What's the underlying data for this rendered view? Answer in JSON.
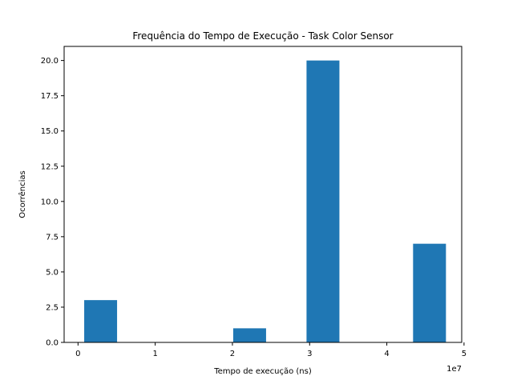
{
  "chart_data": {
    "type": "bar",
    "title": "Frequência do Tempo de Execução - Task Color Sensor",
    "xlabel": "Tempo de execução (ns)",
    "ylabel": "Ocorrências",
    "x_offset_label": "1e7",
    "xlim": [
      -1800000,
      49700000
    ],
    "ylim": [
      0,
      21
    ],
    "bin_width": 4260000,
    "bins": [
      {
        "x_start": 800000,
        "count": 3
      },
      {
        "x_start": 5060000,
        "count": 0
      },
      {
        "x_start": 9320000,
        "count": 0
      },
      {
        "x_start": 13580000,
        "count": 0
      },
      {
        "x_start": 17840000,
        "count": 0
      },
      {
        "x_start": 20100000,
        "count": 1
      },
      {
        "x_start": 29600000,
        "count": 20
      },
      {
        "x_start": 33860000,
        "count": 0
      },
      {
        "x_start": 38120000,
        "count": 0
      },
      {
        "x_start": 43400000,
        "count": 7
      }
    ],
    "x_ticks": [
      {
        "value": 0,
        "label": "0"
      },
      {
        "value": 10000000,
        "label": "1"
      },
      {
        "value": 20000000,
        "label": "2"
      },
      {
        "value": 30000000,
        "label": "3"
      },
      {
        "value": 40000000,
        "label": "4"
      },
      {
        "value": 50000000,
        "label": "5"
      }
    ],
    "y_ticks": [
      {
        "value": 0,
        "label": "0.0"
      },
      {
        "value": 2.5,
        "label": "2.5"
      },
      {
        "value": 5,
        "label": "5.0"
      },
      {
        "value": 7.5,
        "label": "7.5"
      },
      {
        "value": 10,
        "label": "10.0"
      },
      {
        "value": 12.5,
        "label": "12.5"
      },
      {
        "value": 15,
        "label": "15.0"
      },
      {
        "value": 17.5,
        "label": "17.5"
      },
      {
        "value": 20,
        "label": "20.0"
      }
    ],
    "bar_color": "#1f77b4",
    "grid": false,
    "legend": "none"
  }
}
